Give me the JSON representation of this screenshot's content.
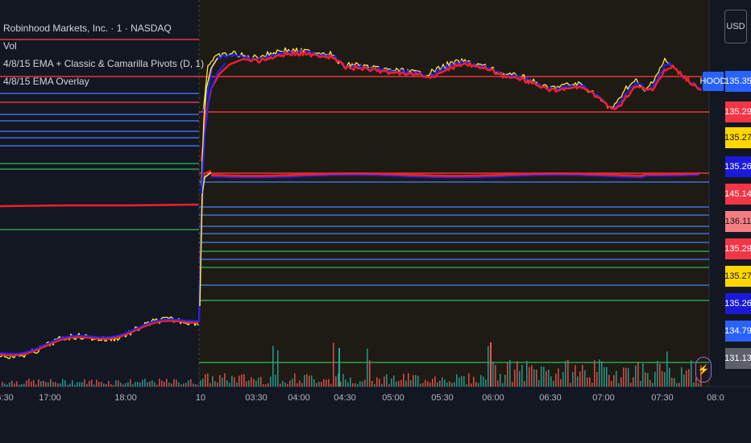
{
  "legend": {
    "title": "Robinhood Markets, Inc. · 1 · NASDAQ",
    "vol": "Vol",
    "indicator1": "4/8/15 EMA + Classic & Camarilla Pivots (D, 1)",
    "indicator2": "4/8/15 EMA Overlay"
  },
  "currency_button": "USD",
  "symbol_tag": "HOOD",
  "price_tags": [
    {
      "label": "135.35",
      "bg": "#2962ff",
      "fg": "#ffffff"
    },
    {
      "label": "135.29",
      "bg": "#f23645",
      "fg": "#ffffff"
    },
    {
      "label": "135.27",
      "bg": "#ffd600",
      "fg": "#131722"
    },
    {
      "label": "135.26",
      "bg": "#1b1bd6",
      "fg": "#ffffff"
    },
    {
      "label": "145.14",
      "bg": "#f23645",
      "fg": "#ffffff"
    },
    {
      "label": "136.11",
      "bg": "#f77c80",
      "fg": "#131722"
    },
    {
      "label": "135.29",
      "bg": "#f23645",
      "fg": "#ffffff"
    },
    {
      "label": "135.27",
      "bg": "#ffd600",
      "fg": "#131722"
    },
    {
      "label": "135.26",
      "bg": "#1b1bd6",
      "fg": "#ffffff"
    },
    {
      "label": "134.79",
      "bg": "#2962ff",
      "fg": "#ffffff"
    },
    {
      "label": "131.13",
      "bg": "#5d606b",
      "fg": "#ffffff"
    }
  ],
  "time_labels": [
    "6:30",
    "17:00",
    "18:00",
    "10",
    "03:30",
    "04:00",
    "04:30",
    "05:00",
    "05:30",
    "06:00",
    "06:30",
    "07:00",
    "07:30",
    "08:0"
  ],
  "colors": {
    "background": "#131722",
    "premarket_bg": "#1e1b14",
    "ema4": "#ffeb3b",
    "ema8": "#1e22ff",
    "ema15": "#f0202a",
    "pivot_red": "#e03a3a",
    "pivot_blue": "#3d6fe0",
    "pivot_green": "#2e9e4e",
    "vol_up": "#26a69a",
    "vol_down": "#ef5350"
  },
  "icons": {
    "alert": "lightning-bolt-icon"
  }
}
